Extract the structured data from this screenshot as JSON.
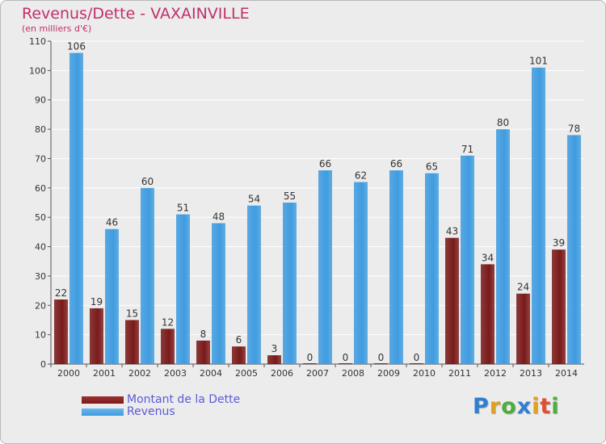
{
  "chart_data": {
    "type": "bar",
    "title": "Revenus/Dette - VAXAINVILLE",
    "subtitle": "(en milliers d'€)",
    "categories": [
      "2000",
      "2001",
      "2002",
      "2003",
      "2004",
      "2005",
      "2006",
      "2007",
      "2008",
      "2009",
      "2010",
      "2011",
      "2012",
      "2013",
      "2014"
    ],
    "series": [
      {
        "name": "Montant de la Dette",
        "color": "#7a1a1a",
        "values": [
          22,
          19,
          15,
          12,
          8,
          6,
          3,
          0,
          0,
          0,
          0,
          43,
          34,
          24,
          39
        ]
      },
      {
        "name": "Revenus",
        "color": "#3f9ce0",
        "values": [
          106,
          46,
          60,
          51,
          48,
          54,
          55,
          66,
          62,
          66,
          65,
          71,
          80,
          101,
          78
        ]
      }
    ],
    "ylim": [
      0,
      110
    ],
    "yticks": [
      0,
      10,
      20,
      30,
      40,
      50,
      60,
      70,
      80,
      90,
      100,
      110
    ],
    "grid": true,
    "legend": "bottom-left"
  },
  "logo": {
    "letters": [
      {
        "ch": "P",
        "color": "#2f7fd0"
      },
      {
        "ch": "r",
        "color": "#e0a020"
      },
      {
        "ch": "o",
        "color": "#4cae3c"
      },
      {
        "ch": "x",
        "color": "#2f7fd0"
      },
      {
        "ch": "i",
        "color": "#e0a020"
      },
      {
        "ch": "t",
        "color": "#e05030"
      },
      {
        "ch": "i",
        "color": "#4cae3c"
      }
    ]
  }
}
